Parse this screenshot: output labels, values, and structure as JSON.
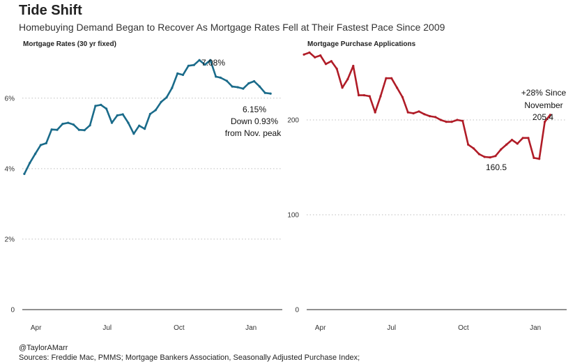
{
  "title": "Tide Shift",
  "subtitle": "Homebuying Demand Began to Recover As Mortgage Rates Fell at Their Fastest Pace Since 2009",
  "footer": {
    "handle": "@TaylorAMarr",
    "sources": "Sources: Freddie Mac, PMMS; Mortgage Bankers Association, Seasonally Adjusted Purchase Index;"
  },
  "colors": {
    "rates": "#1a6b8a",
    "apps": "#b01c27"
  },
  "chart_data": [
    {
      "type": "line",
      "title": "Mortgage Rates (30 yr fixed)",
      "x_ticks": [
        "Apr",
        "Jul",
        "Oct",
        "Jan"
      ],
      "y_ticks": [
        "0",
        "2%",
        "4%",
        "6%"
      ],
      "y_tick_values": [
        0,
        2,
        4,
        6
      ],
      "ylim": [
        0,
        7.4
      ],
      "xlim": [
        "2022-03-10",
        "2023-02-10"
      ],
      "grid": "horizontal dotted",
      "series": [
        {
          "x": [
            "2022-03-17",
            "2022-03-24",
            "2022-03-31",
            "2022-04-07",
            "2022-04-14",
            "2022-04-21",
            "2022-04-28",
            "2022-05-05",
            "2022-05-12",
            "2022-05-19",
            "2022-05-26",
            "2022-06-02",
            "2022-06-09",
            "2022-06-16",
            "2022-06-23",
            "2022-06-30",
            "2022-07-07",
            "2022-07-14",
            "2022-07-21",
            "2022-07-28",
            "2022-08-04",
            "2022-08-11",
            "2022-08-18",
            "2022-08-25",
            "2022-09-01",
            "2022-09-08",
            "2022-09-15",
            "2022-09-22",
            "2022-09-29",
            "2022-10-06",
            "2022-10-13",
            "2022-10-20",
            "2022-10-27",
            "2022-11-03",
            "2022-11-10",
            "2022-11-17",
            "2022-11-23",
            "2022-12-01",
            "2022-12-08",
            "2022-12-15",
            "2022-12-22",
            "2022-12-29",
            "2023-01-05",
            "2023-01-12",
            "2023-01-19",
            "2023-01-26"
          ],
          "y": [
            3.85,
            4.16,
            4.42,
            4.67,
            4.72,
            5.11,
            5.1,
            5.27,
            5.3,
            5.25,
            5.1,
            5.09,
            5.23,
            5.78,
            5.81,
            5.7,
            5.3,
            5.51,
            5.54,
            5.3,
            4.99,
            5.22,
            5.13,
            5.55,
            5.66,
            5.89,
            6.02,
            6.29,
            6.7,
            6.66,
            6.92,
            6.94,
            7.08,
            6.95,
            7.08,
            6.61,
            6.58,
            6.49,
            6.33,
            6.31,
            6.27,
            6.42,
            6.48,
            6.33,
            6.15,
            6.13
          ]
        }
      ],
      "annotations": [
        "7.08%",
        "6.15%",
        "Down 0.93%",
        "from Nov. peak"
      ]
    },
    {
      "type": "line",
      "title": "Mortgage Purchase Applications",
      "x_ticks": [
        "Apr",
        "Jul",
        "Oct",
        "Jan"
      ],
      "y_ticks": [
        "0",
        "100",
        "200"
      ],
      "y_tick_values": [
        0,
        100,
        200
      ],
      "ylim": [
        0,
        275
      ],
      "xlim": [
        "2022-03-10",
        "2023-02-10"
      ],
      "grid": "horizontal dotted",
      "series": [
        {
          "x": [
            "2022-03-11",
            "2022-03-18",
            "2022-03-25",
            "2022-04-01",
            "2022-04-08",
            "2022-04-15",
            "2022-04-22",
            "2022-04-29",
            "2022-05-06",
            "2022-05-13",
            "2022-05-20",
            "2022-05-27",
            "2022-06-03",
            "2022-06-10",
            "2022-06-17",
            "2022-06-24",
            "2022-07-01",
            "2022-07-08",
            "2022-07-15",
            "2022-07-22",
            "2022-07-29",
            "2022-08-05",
            "2022-08-12",
            "2022-08-19",
            "2022-08-26",
            "2022-09-02",
            "2022-09-09",
            "2022-09-16",
            "2022-09-23",
            "2022-09-30",
            "2022-10-07",
            "2022-10-14",
            "2022-10-21",
            "2022-10-28",
            "2022-11-04",
            "2022-11-11",
            "2022-11-18",
            "2022-11-25",
            "2022-12-02",
            "2022-12-09",
            "2022-12-16",
            "2022-12-23",
            "2022-12-30",
            "2023-01-06",
            "2023-01-13",
            "2023-01-20"
          ],
          "y": [
            269,
            271,
            266,
            268,
            259,
            262,
            254,
            234,
            243,
            257,
            226,
            226,
            225,
            208,
            225,
            244,
            244,
            234,
            224,
            208,
            207,
            209,
            206,
            204,
            203,
            200,
            198,
            198,
            200,
            199,
            174,
            170,
            164,
            161,
            160.5,
            162,
            169,
            174,
            179,
            175,
            181,
            181,
            160,
            159,
            198,
            205.4
          ]
        }
      ],
      "annotations": [
        "+28% Since",
        "November",
        "205.4",
        "160.5"
      ]
    }
  ]
}
